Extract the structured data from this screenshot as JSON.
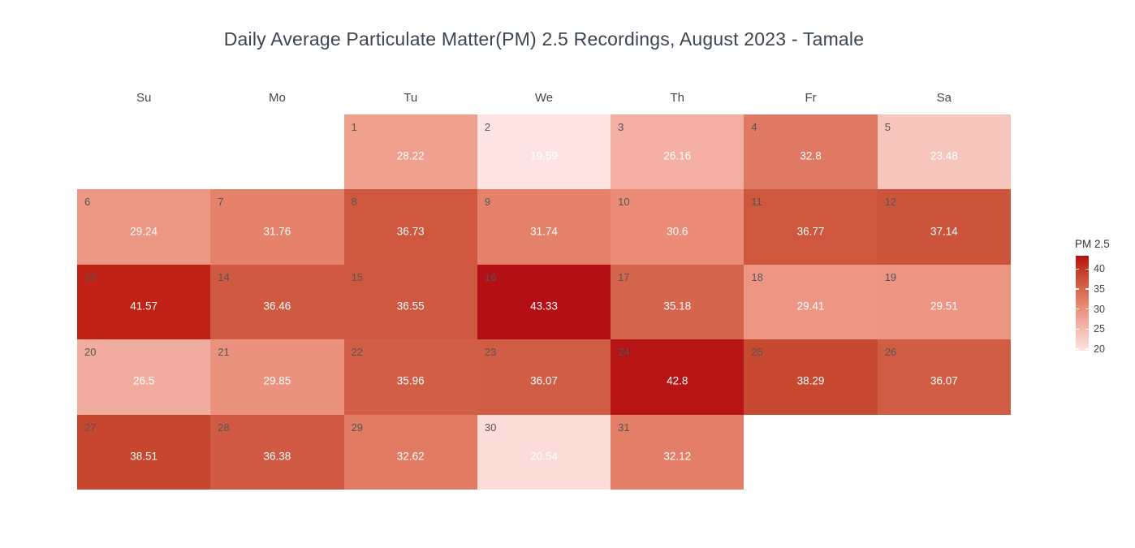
{
  "title": "Daily Average Particulate Matter(PM) 2.5 Recordings, August 2023 - Tamale",
  "chart_data": {
    "type": "heatmap",
    "subtype": "calendar",
    "month": "August 2023",
    "location": "Tamale",
    "day_headers": [
      "Su",
      "Mo",
      "Tu",
      "We",
      "Th",
      "Fr",
      "Sa"
    ],
    "first_day_column": 2,
    "days": [
      {
        "day": 1,
        "value": 28.22
      },
      {
        "day": 2,
        "value": 19.59
      },
      {
        "day": 3,
        "value": 26.16
      },
      {
        "day": 4,
        "value": 32.8
      },
      {
        "day": 5,
        "value": 23.48
      },
      {
        "day": 6,
        "value": 29.24
      },
      {
        "day": 7,
        "value": 31.76
      },
      {
        "day": 8,
        "value": 36.73
      },
      {
        "day": 9,
        "value": 31.74
      },
      {
        "day": 10,
        "value": 30.6
      },
      {
        "day": 11,
        "value": 36.77
      },
      {
        "day": 12,
        "value": 37.14
      },
      {
        "day": 13,
        "value": 41.57
      },
      {
        "day": 14,
        "value": 36.46
      },
      {
        "day": 15,
        "value": 36.55
      },
      {
        "day": 16,
        "value": 43.33
      },
      {
        "day": 17,
        "value": 35.18
      },
      {
        "day": 18,
        "value": 29.41
      },
      {
        "day": 19,
        "value": 29.51
      },
      {
        "day": 20,
        "value": 26.5
      },
      {
        "day": 21,
        "value": 29.85
      },
      {
        "day": 22,
        "value": 35.96
      },
      {
        "day": 23,
        "value": 36.07
      },
      {
        "day": 24,
        "value": 42.8
      },
      {
        "day": 25,
        "value": 38.29
      },
      {
        "day": 26,
        "value": 36.07
      },
      {
        "day": 27,
        "value": 38.51
      },
      {
        "day": 28,
        "value": 36.38
      },
      {
        "day": 29,
        "value": 32.62
      },
      {
        "day": 30,
        "value": 20.54
      },
      {
        "day": 31,
        "value": 32.12
      }
    ],
    "legend": {
      "title": "PM 2.5",
      "ticks": [
        40,
        35,
        30,
        25,
        20
      ],
      "min": 19.59,
      "max": 43.33
    },
    "colorscale": [
      {
        "t": 0,
        "color": "#fde4e2"
      },
      {
        "t": 0.4638,
        "color": "#ea8c77"
      },
      {
        "t": 0.7877,
        "color": "#c74a30"
      },
      {
        "t": 0.9259,
        "color": "#c02315"
      },
      {
        "t": 1,
        "color": "#b30f15"
      }
    ],
    "colors": {
      "value_text": "#ffffff",
      "day_number_text": "#555555",
      "empty_cell": "#ffffff"
    }
  }
}
